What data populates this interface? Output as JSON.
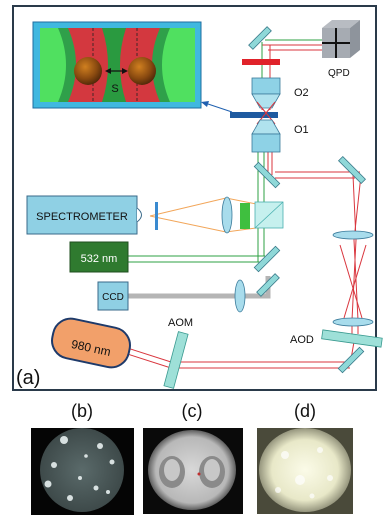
{
  "diagram": {
    "panel_a_label": "(a)",
    "separation_label": "S",
    "components": {
      "qpd": "QPD",
      "o2": "O2",
      "o1": "O1",
      "spectrometer": "SPECTROMETER",
      "laser_532": "532 nm",
      "ccd": "CCD",
      "laser_980": "980 nm",
      "aom": "AOM",
      "aod": "AOD"
    },
    "beam_colors": {
      "infrared": "#d9363e",
      "green": "#2ea043",
      "orange": "#f2a65a",
      "ccd_path": "#b0b0b0"
    }
  },
  "images": [
    {
      "label": "(b)"
    },
    {
      "label": "(c)"
    },
    {
      "label": "(d)"
    }
  ]
}
